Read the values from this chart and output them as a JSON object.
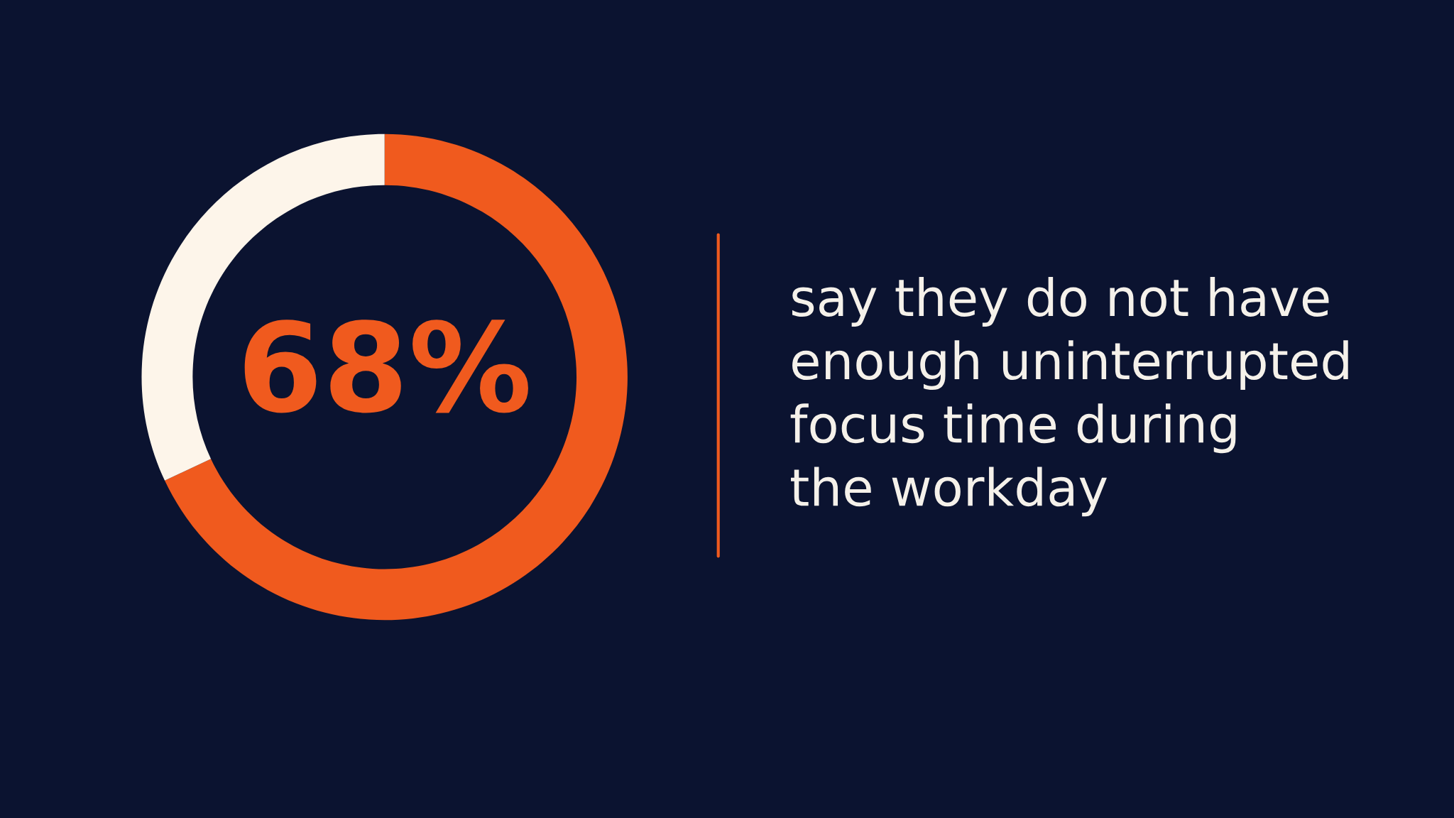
{
  "chart_data": {
    "type": "donut",
    "categories": [
      null,
      null
    ],
    "values": [
      68,
      32
    ],
    "colors": [
      "#f05a1e",
      "#fdf5ea"
    ],
    "value_labels": [
      "68%",
      null
    ],
    "annotations": [
      "say they do not have\nenough uninterrupted\nfocus time during\nthe workday"
    ]
  }
}
